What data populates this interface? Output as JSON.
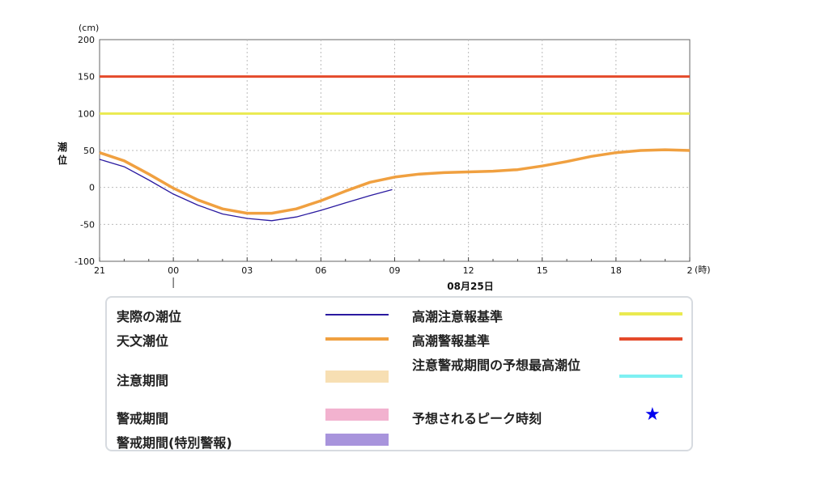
{
  "chart_data": {
    "type": "line",
    "unit_label": "(cm)",
    "ylabel": "潮位",
    "ylim": [
      -100,
      200
    ],
    "yticks": [
      -100,
      -50,
      0,
      50,
      100,
      150,
      200
    ],
    "x_hours_range": [
      0,
      24
    ],
    "xticks": [
      {
        "h": 0,
        "label": "21"
      },
      {
        "h": 3,
        "label": "00"
      },
      {
        "h": 6,
        "label": "03"
      },
      {
        "h": 9,
        "label": "06"
      },
      {
        "h": 12,
        "label": "09"
      },
      {
        "h": 15,
        "label": "12"
      },
      {
        "h": 18,
        "label": "15"
      },
      {
        "h": 21,
        "label": "18"
      },
      {
        "h": 24,
        "label": "2"
      }
    ],
    "x_unit_label": "(時)",
    "date_label": "08月25日",
    "series": [
      {
        "name": "天文潮位",
        "color": "#f0a040",
        "x": [
          0,
          1,
          2,
          3,
          4,
          5,
          6,
          7,
          8,
          9,
          10,
          11,
          12,
          13,
          14,
          15,
          16,
          17,
          18,
          19,
          20,
          21,
          22,
          23,
          24
        ],
        "y": [
          47,
          36,
          18,
          -1,
          -17,
          -29,
          -35,
          -35,
          -29,
          -18,
          -5,
          7,
          14,
          18,
          20,
          21,
          22,
          24,
          29,
          35,
          42,
          47,
          50,
          51,
          50
        ]
      },
      {
        "name": "実際の潮位",
        "color": "#2a1aa0",
        "x": [
          0,
          1,
          2,
          3,
          4,
          5,
          6,
          7,
          8,
          9,
          10,
          11,
          11.9
        ],
        "y": [
          38,
          28,
          10,
          -9,
          -24,
          -36,
          -42,
          -45,
          -40,
          -31,
          -21,
          -11,
          -3
        ]
      }
    ],
    "thresholds": [
      {
        "name": "高潮警報基準",
        "value": 150,
        "color": "#e44a2a"
      },
      {
        "name": "高潮注意報基準",
        "value": 100,
        "color": "#eaea50"
      }
    ],
    "grid": true
  },
  "legend": {
    "items": [
      {
        "label": "実際の潮位",
        "color": "#2a1aa0",
        "kind": "line-thin"
      },
      {
        "label": "天文潮位",
        "color": "#f0a040",
        "kind": "line-thick"
      },
      {
        "label": "注意期間",
        "color": "#f7dfb3",
        "kind": "swatch"
      },
      {
        "label": "警戒期間",
        "color": "#f2b2cf",
        "kind": "swatch"
      },
      {
        "label": "警戒期間(特別警報)",
        "color": "#a894dc",
        "kind": "swatch"
      },
      {
        "label": "高潮注意報基準",
        "color": "#eaea50",
        "kind": "line-thick"
      },
      {
        "label": "高潮警報基準",
        "color": "#e44a2a",
        "kind": "line-thick"
      },
      {
        "label": "注意警戒期間の予想最高潮位",
        "color": "#7ef0f2",
        "kind": "line-thick"
      },
      {
        "label": "予想されるピーク時刻",
        "color": "#0000ee",
        "kind": "star"
      }
    ]
  }
}
